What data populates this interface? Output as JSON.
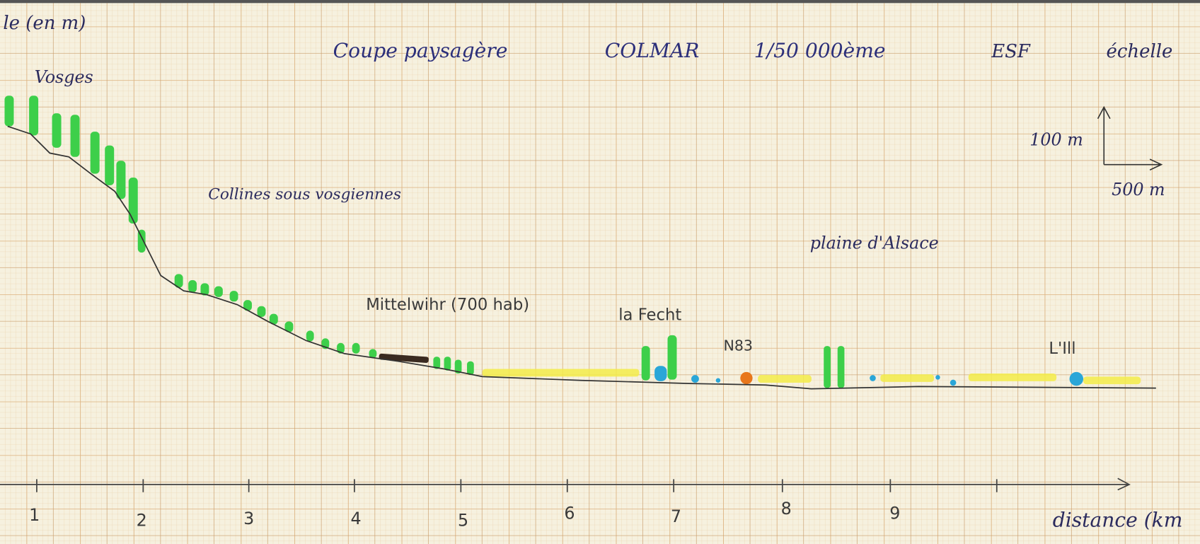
{
  "axis_title_y": "le (en m)",
  "title": {
    "name": "Coupe paysagère",
    "place": "COLMAR",
    "scale": "1/50 000ème",
    "author": "ESF",
    "scale_label": "échelle"
  },
  "scale_bar": {
    "vertical": "100 m",
    "horizontal": "500 m"
  },
  "labels": {
    "vosges": "Vosges",
    "collines": "Collines sous vosgiennes",
    "village": "Mittelwihr (700 hab)",
    "river1": "la Fecht",
    "road": "N83",
    "plain": "plaine d'Alsace",
    "river2": "L'Ill"
  },
  "x_axis": {
    "labels": [
      "1",
      "2",
      "3",
      "4",
      "5",
      "6",
      "7",
      "8",
      "9"
    ],
    "title": "distance (km"
  }
}
